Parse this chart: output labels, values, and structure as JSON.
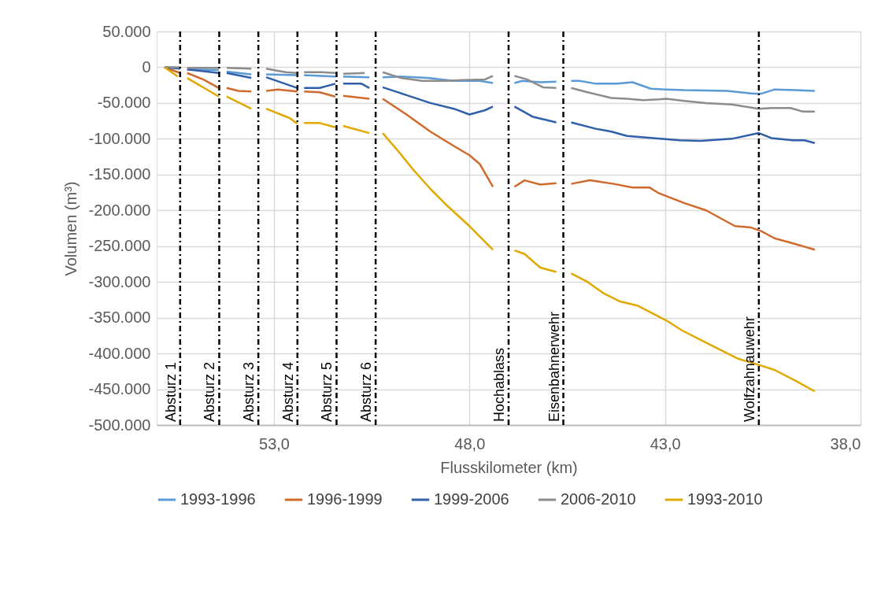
{
  "chart_data": {
    "type": "line",
    "xlabel": "Flusskilometer  (km)",
    "ylabel": "Volumen (m³)",
    "xlim": [
      56,
      38
    ],
    "xticks": [
      {
        "value": 53,
        "label": "53,0"
      },
      {
        "value": 48,
        "label": "48,0"
      },
      {
        "value": 43,
        "label": "43,0"
      },
      {
        "value": 38,
        "label": "38,0"
      }
    ],
    "ylim": [
      -500000,
      50000
    ],
    "yticks": [
      {
        "value": -500000,
        "label": "-500.000"
      },
      {
        "value": -450000,
        "label": "-450.000"
      },
      {
        "value": -400000,
        "label": "-400.000"
      },
      {
        "value": -350000,
        "label": "-350.000"
      },
      {
        "value": -300000,
        "label": "-300.000"
      },
      {
        "value": -250000,
        "label": "-250.000"
      },
      {
        "value": -200000,
        "label": "-200.000"
      },
      {
        "value": -150000,
        "label": "-150.000"
      },
      {
        "value": -100000,
        "label": "-100.000"
      },
      {
        "value": -50000,
        "label": "-50.000"
      },
      0,
      {
        "value": 50000,
        "label": "50.000"
      }
    ],
    "grid": true,
    "legend": "bottom",
    "marker": "none",
    "line_style": "solid",
    "series": [
      {
        "name": "1993-1996",
        "color": "#5b9bd5",
        "x": [
          55.8,
          55.4,
          55.3,
          55.22,
          54.41,
          54.3,
          54.21,
          53.58,
          53.4,
          53.2,
          52.4,
          52.3,
          52.23,
          51.43,
          51.3,
          51.23,
          50.56,
          50.4,
          50.22,
          49.75,
          49.07,
          48.4,
          47.74,
          47.4,
          47.0,
          46.85,
          46.65,
          46.19,
          45.78,
          45.6,
          45.4,
          45.18,
          44.77,
          44.23,
          43.83,
          43.36,
          42.96,
          42.5,
          41.41,
          40.74,
          40.54,
          40.2,
          39.67,
          39.17
        ],
        "values": [
          0,
          -1000,
          null,
          -3000,
          -4000,
          null,
          -6000,
          -10000,
          null,
          -10000,
          -11000,
          null,
          -11000,
          -13000,
          null,
          -13000,
          -14000,
          null,
          -14000,
          -13000,
          -15000,
          -19000,
          -19000,
          -22000,
          null,
          -22000,
          -19000,
          -21000,
          -20000,
          null,
          -19000,
          -19000,
          -23000,
          -23000,
          -21000,
          -30000,
          -31000,
          -32000,
          -33000,
          -37000,
          -37000,
          -31000,
          -32000,
          -33000
        ]
      },
      {
        "name": "1996-1999",
        "color": "#d0692c",
        "x": [
          55.8,
          55.4,
          55.3,
          55.22,
          54.81,
          54.41,
          54.3,
          54.21,
          53.91,
          53.58,
          53.4,
          53.2,
          52.9,
          52.4,
          52.3,
          52.23,
          51.83,
          51.43,
          51.3,
          51.23,
          50.56,
          50.4,
          50.22,
          49.61,
          49.0,
          48.4,
          48.0,
          47.74,
          47.4,
          47.0,
          46.85,
          46.59,
          46.19,
          45.78,
          45.6,
          45.4,
          44.92,
          44.31,
          43.83,
          43.4,
          43.16,
          42.5,
          41.95,
          41.21,
          40.8,
          40.54,
          40.2,
          39.67,
          39.17
        ],
        "values": [
          0,
          -8000,
          null,
          -8000,
          -17000,
          -29000,
          null,
          -29000,
          -33000,
          -34000,
          null,
          -33000,
          -31000,
          -34000,
          null,
          -34000,
          -35000,
          -41000,
          null,
          -40000,
          -44000,
          null,
          -44000,
          -66000,
          -90000,
          -110000,
          -123000,
          -135000,
          -167000,
          null,
          -167000,
          -158000,
          -164000,
          -162000,
          null,
          -163000,
          -158000,
          -163000,
          -168000,
          -168000,
          -176000,
          -190000,
          -200000,
          -222000,
          -224000,
          -229000,
          -239000,
          -247000,
          -255000
        ]
      },
      {
        "name": "1999-2006",
        "color": "#2f5fa8",
        "x": [
          55.8,
          55.4,
          55.3,
          55.22,
          54.41,
          54.3,
          54.21,
          53.58,
          53.4,
          53.2,
          52.4,
          52.3,
          52.23,
          51.83,
          51.43,
          51.3,
          51.23,
          50.76,
          50.56,
          50.4,
          50.22,
          49.61,
          49.0,
          48.4,
          48.0,
          47.6,
          47.4,
          47.0,
          46.85,
          46.39,
          45.78,
          45.6,
          45.4,
          44.77,
          44.37,
          43.97,
          43.3,
          42.62,
          42.09,
          41.29,
          40.6,
          40.28,
          39.73,
          39.43,
          39.17
        ],
        "values": [
          0,
          -2000,
          null,
          -3000,
          -8000,
          null,
          -8000,
          -15000,
          null,
          -14000,
          -29000,
          null,
          -29000,
          -29000,
          -23000,
          null,
          -23000,
          -23000,
          -29000,
          null,
          -28000,
          -39000,
          -50000,
          -58000,
          -66000,
          -60000,
          -55000,
          null,
          -55000,
          -69000,
          -77000,
          null,
          -77000,
          -86000,
          -90000,
          -96000,
          -99000,
          -102000,
          -103000,
          -100000,
          -92000,
          -99000,
          -102000,
          -102000,
          -106000
        ]
      },
      {
        "name": "2006-2010",
        "color": "#8c8c8c",
        "x": [
          55.8,
          55.4,
          55.3,
          55.22,
          54.41,
          54.3,
          54.21,
          53.58,
          53.4,
          53.2,
          52.7,
          52.4,
          52.3,
          52.23,
          51.77,
          51.43,
          51.3,
          51.23,
          50.68,
          50.4,
          50.22,
          49.75,
          49.21,
          48.6,
          48.2,
          47.6,
          47.4,
          47.0,
          46.85,
          46.53,
          46.12,
          45.78,
          45.6,
          45.4,
          44.98,
          44.37,
          43.97,
          43.56,
          43.16,
          42.96,
          42.5,
          41.95,
          41.29,
          40.6,
          40.28,
          39.79,
          39.47,
          39.17
        ],
        "values": [
          0,
          0,
          null,
          -1000,
          -1000,
          null,
          -1000,
          -2000,
          null,
          -2000,
          -7000,
          -8000,
          null,
          -7000,
          -7000,
          -8000,
          null,
          -9000,
          -8000,
          null,
          -7000,
          -15000,
          -19000,
          -19000,
          -18000,
          -17000,
          -12000,
          null,
          -12000,
          -17000,
          -28000,
          -29000,
          null,
          -29000,
          -35000,
          -43000,
          -44000,
          -46000,
          -45000,
          -44000,
          -47000,
          -50000,
          -52000,
          -58000,
          -57000,
          -57000,
          -62000,
          -62000
        ]
      },
      {
        "name": "1993-2010",
        "color": "#e0a800",
        "x": [
          55.8,
          55.46,
          55.3,
          55.22,
          54.41,
          54.3,
          54.21,
          53.58,
          53.4,
          53.2,
          52.6,
          52.4,
          52.3,
          52.23,
          51.83,
          51.43,
          51.3,
          51.23,
          50.56,
          50.4,
          50.22,
          49.81,
          49.41,
          49.0,
          48.6,
          48.0,
          47.4,
          47.0,
          46.85,
          46.59,
          46.19,
          45.78,
          45.6,
          45.4,
          44.98,
          44.57,
          44.17,
          43.71,
          42.96,
          42.56,
          41.95,
          41.15,
          40.6,
          40.2,
          39.6,
          39.17
        ],
        "values": [
          0,
          -13000,
          null,
          -15000,
          -41000,
          null,
          -41000,
          -58000,
          null,
          -58000,
          -71000,
          -79000,
          null,
          -78000,
          -78000,
          -84000,
          null,
          -82000,
          -92000,
          null,
          -92000,
          -118000,
          -145000,
          -170000,
          -192000,
          -222000,
          -255000,
          null,
          -256000,
          -261000,
          -280000,
          -286000,
          null,
          -288000,
          -300000,
          -316000,
          -327000,
          -333000,
          -354000,
          -368000,
          -385000,
          -407000,
          -416000,
          -423000,
          -440000,
          -453000
        ]
      }
    ],
    "ref_lines": [
      {
        "axis": "x",
        "value": 55.4,
        "label": "Absturz 1",
        "color": "#000000",
        "line_style": "dashed"
      },
      {
        "axis": "x",
        "value": 54.4,
        "label": "Absturz 2",
        "color": "#000000",
        "line_style": "dashed"
      },
      {
        "axis": "x",
        "value": 53.4,
        "label": "Absturz 3",
        "color": "#000000",
        "line_style": "dashed"
      },
      {
        "axis": "x",
        "value": 52.4,
        "label": "Absturz 4",
        "color": "#000000",
        "line_style": "dashed"
      },
      {
        "axis": "x",
        "value": 51.4,
        "label": "Absturz 5",
        "color": "#000000",
        "line_style": "dashed"
      },
      {
        "axis": "x",
        "value": 50.4,
        "label": "Absturz 6",
        "color": "#000000",
        "line_style": "dashed"
      },
      {
        "axis": "x",
        "value": 47.0,
        "label": "Hochablass",
        "color": "#000000",
        "line_style": "dashed"
      },
      {
        "axis": "x",
        "value": 45.6,
        "label": "Eisenbahnerwehr",
        "color": "#000000",
        "line_style": "dashed"
      },
      {
        "axis": "x",
        "value": 40.6,
        "label": "Wolfzahnauwehr",
        "color": "#000000",
        "line_style": "dashed"
      }
    ]
  }
}
